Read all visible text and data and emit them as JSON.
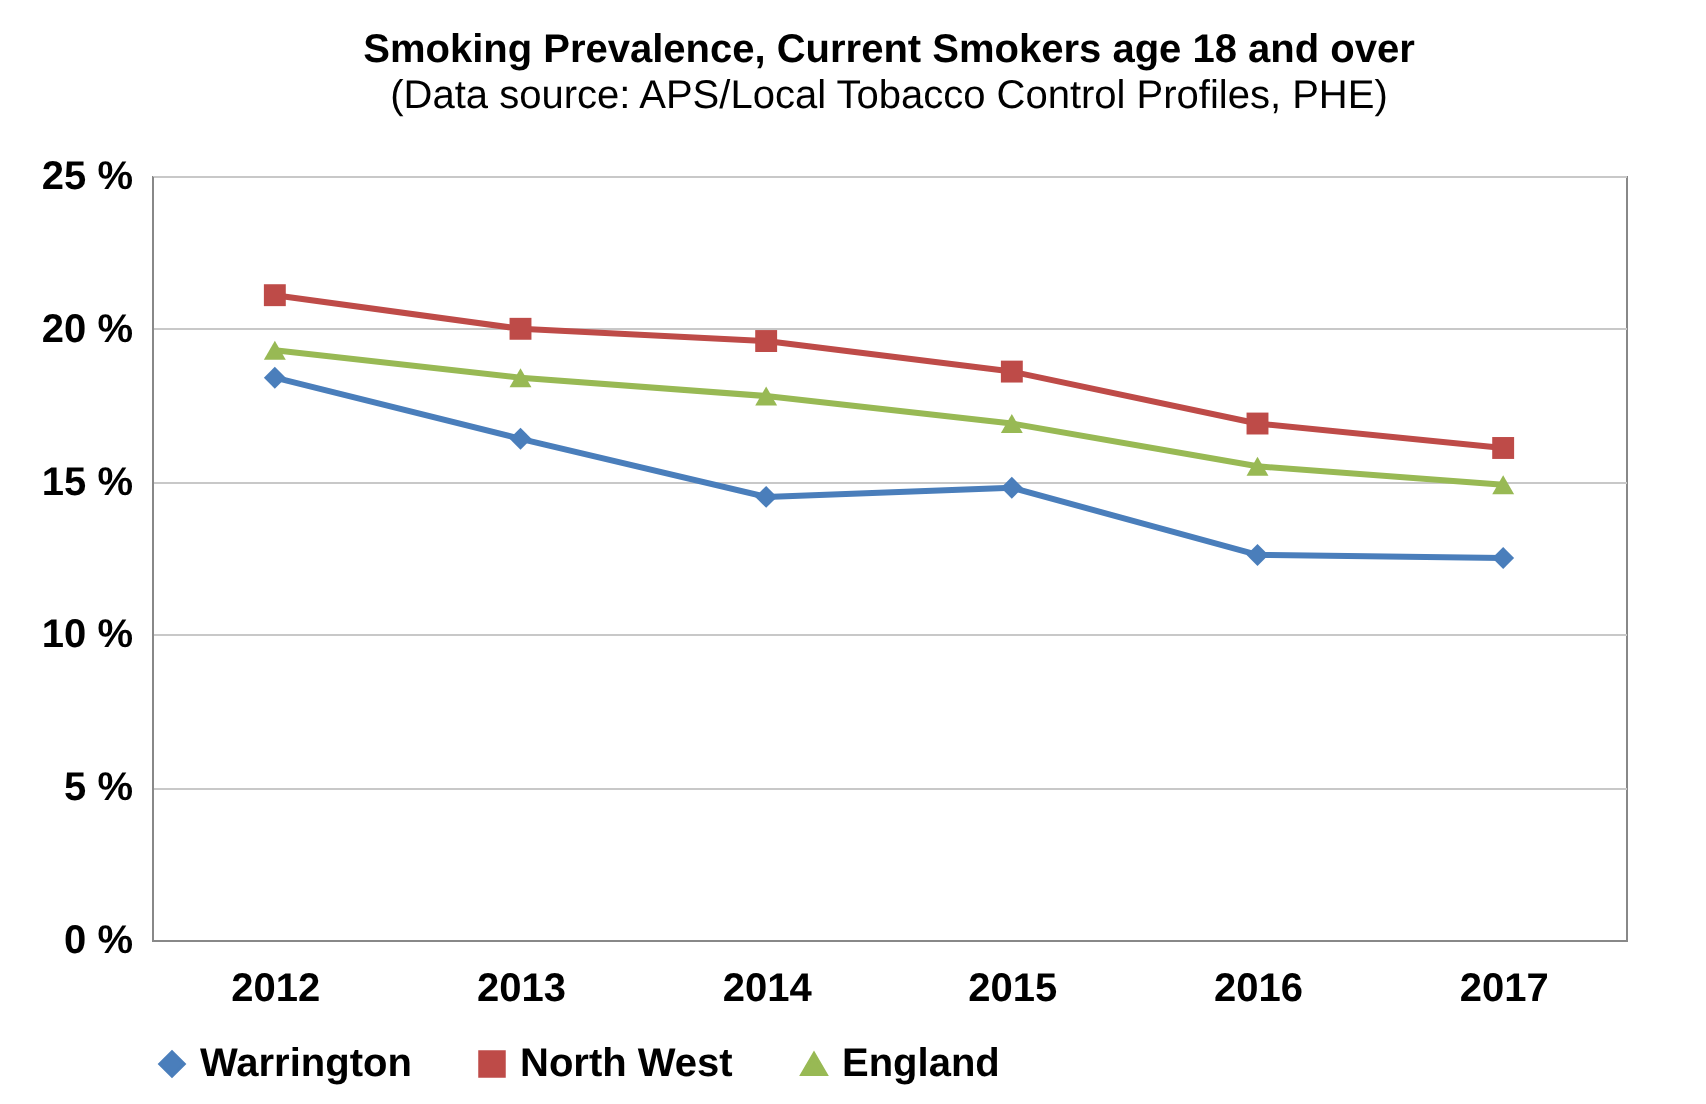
{
  "chart_data": {
    "type": "line",
    "title": "Smoking Prevalence, Current Smokers age 18 and over",
    "subtitle": "(Data source: APS/Local Tobacco Control Profiles, PHE)",
    "categories": [
      "2012",
      "2013",
      "2014",
      "2015",
      "2016",
      "2017"
    ],
    "series": [
      {
        "name": "Warrington",
        "color": "#4a7ebb",
        "marker": "diamond",
        "values": [
          18.4,
          16.4,
          14.5,
          14.8,
          12.6,
          12.5
        ]
      },
      {
        "name": "North West",
        "color": "#be4b48",
        "marker": "square",
        "values": [
          21.1,
          20.0,
          19.6,
          18.6,
          16.9,
          16.1
        ]
      },
      {
        "name": "England",
        "color": "#98b954",
        "marker": "triangle",
        "values": [
          19.3,
          18.4,
          17.8,
          16.9,
          15.5,
          14.9
        ]
      }
    ],
    "ylim": [
      0,
      25
    ],
    "yticks": [
      {
        "value": 0,
        "label": "0 %"
      },
      {
        "value": 5,
        "label": "5 %"
      },
      {
        "value": 10,
        "label": "10 %"
      },
      {
        "value": 15,
        "label": "15 %"
      },
      {
        "value": 20,
        "label": "20 %"
      },
      {
        "value": 25,
        "label": "25 %"
      }
    ],
    "grid": "y",
    "legend": "bottom",
    "line_style": "solid"
  }
}
